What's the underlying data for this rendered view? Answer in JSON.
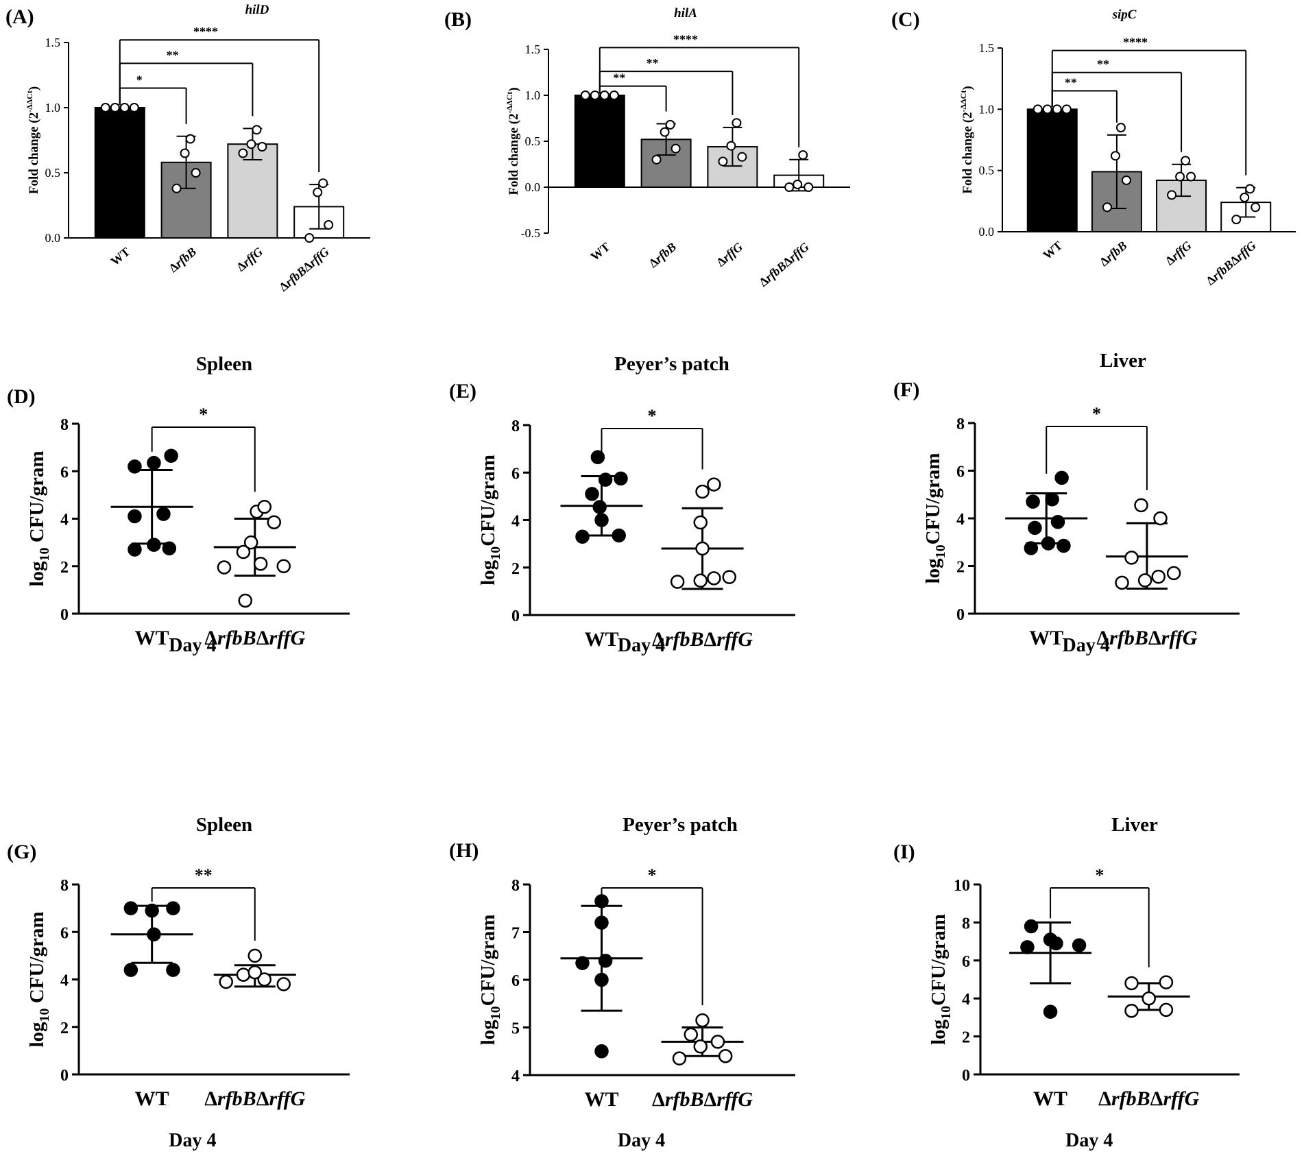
{
  "figure": {
    "bar_panels": [
      {
        "id": "A",
        "label": "(A)",
        "gene": "hilD",
        "ylabel": "Fold change (2",
        "ylabel_sup": "-ΔΔCt",
        "ylabel_end": ")",
        "ylim": [
          0,
          1.5
        ],
        "yticks": [
          0.0,
          0.5,
          1.0,
          1.5
        ],
        "yticklabels": [
          "0.0",
          "0.5",
          "1.0",
          "1.5"
        ],
        "categories": [
          "WT",
          "ΔrfbB",
          "ΔrffG",
          "ΔrfbBΔrffG"
        ],
        "means": [
          1.0,
          0.58,
          0.72,
          0.24
        ],
        "sd": [
          0.0,
          0.2,
          0.12,
          0.17
        ],
        "points": [
          [
            1.0,
            1.0,
            1.0,
            1.0
          ],
          [
            0.38,
            0.5,
            0.65,
            0.76
          ],
          [
            0.65,
            0.7,
            0.72,
            0.83
          ],
          [
            0.0,
            0.1,
            0.35,
            0.42
          ]
        ],
        "colors": [
          "#000000",
          "#808080",
          "#d3d3d3",
          "#ffffff"
        ],
        "comparisons": [
          {
            "to": 1,
            "label": "*",
            "level": 1.15
          },
          {
            "to": 2,
            "label": "**",
            "level": 1.34
          },
          {
            "to": 3,
            "label": "****",
            "level": 1.52
          }
        ]
      },
      {
        "id": "B",
        "label": "(B)",
        "gene": "hilA",
        "ylabel": "Fold change (2",
        "ylabel_sup": "-ΔΔCt",
        "ylabel_end": ")",
        "ylim": [
          -0.5,
          1.5
        ],
        "yticks": [
          -0.5,
          0.0,
          0.5,
          1.0,
          1.5
        ],
        "yticklabels": [
          "-0.5",
          "0.0",
          "0.5",
          "1.0",
          "1.5"
        ],
        "categories": [
          "WT",
          "ΔrfbB",
          "ΔrffG",
          "ΔrfbBΔrffG"
        ],
        "means": [
          1.0,
          0.52,
          0.44,
          0.13
        ],
        "sd": [
          0.0,
          0.17,
          0.21,
          0.17
        ],
        "points": [
          [
            1.0,
            1.0,
            1.0,
            1.0
          ],
          [
            0.3,
            0.42,
            0.6,
            0.68
          ],
          [
            0.28,
            0.33,
            0.45,
            0.7
          ],
          [
            0.0,
            0.0,
            0.03,
            0.35
          ]
        ],
        "colors": [
          "#000000",
          "#808080",
          "#d3d3d3",
          "#ffffff"
        ],
        "comparisons": [
          {
            "to": 1,
            "label": "**",
            "level": 1.1
          },
          {
            "to": 2,
            "label": "**",
            "level": 1.26
          },
          {
            "to": 3,
            "label": "****",
            "level": 1.52
          }
        ]
      },
      {
        "id": "C",
        "label": "(C)",
        "gene": "sipC",
        "ylabel": "Fold change (2",
        "ylabel_sup": "-ΔΔCt",
        "ylabel_end": ")",
        "ylim": [
          0,
          1.5
        ],
        "yticks": [
          0.0,
          0.5,
          1.0,
          1.5
        ],
        "yticklabels": [
          "0.0",
          "0.5",
          "1.0",
          "1.5"
        ],
        "categories": [
          "WT",
          "ΔrfbB",
          "ΔrffG",
          "ΔrfbBΔrffG"
        ],
        "means": [
          1.0,
          0.49,
          0.42,
          0.24
        ],
        "sd": [
          0.0,
          0.3,
          0.13,
          0.12
        ],
        "points": [
          [
            1.0,
            1.0,
            1.0,
            1.0
          ],
          [
            0.2,
            0.42,
            0.62,
            0.85
          ],
          [
            0.3,
            0.45,
            0.45,
            0.58
          ],
          [
            0.1,
            0.2,
            0.28,
            0.35
          ]
        ],
        "colors": [
          "#000000",
          "#808080",
          "#d3d3d3",
          "#ffffff"
        ],
        "comparisons": [
          {
            "to": 1,
            "label": "**",
            "level": 1.15
          },
          {
            "to": 2,
            "label": "**",
            "level": 1.3
          },
          {
            "to": 3,
            "label": "****",
            "level": 1.48
          }
        ]
      }
    ],
    "scatter_panels": [
      {
        "id": "D",
        "label": "(D)",
        "title": "Spleen",
        "ylabel_pre": "log",
        "ylabel_sub": "10",
        "ylabel_post": " CFU/gram",
        "ylim": [
          0,
          8
        ],
        "yticks": [
          0,
          2,
          4,
          6,
          8
        ],
        "yticklabels": [
          "0",
          "2",
          "4",
          "6",
          "8"
        ],
        "xlabel": "Day 4",
        "star": "*",
        "groups": [
          {
            "name": "WT",
            "filled": true,
            "mean": 4.5,
            "sd_low": 2.95,
            "sd_high": 6.05,
            "points": [
              2.7,
              2.75,
              2.9,
              4.1,
              4.2,
              6.2,
              6.35,
              6.65
            ],
            "offsets": [
              -0.9,
              0.9,
              0.1,
              -0.9,
              0.6,
              -0.9,
              0.1,
              1.0
            ]
          },
          {
            "name": "ΔrfbBΔrffG",
            "filled": false,
            "mean": 2.8,
            "sd_low": 1.6,
            "sd_high": 4.0,
            "points": [
              0.55,
              1.95,
              2.0,
              2.1,
              2.6,
              3.0,
              3.85,
              4.3,
              4.5
            ],
            "offsets": [
              -0.5,
              -1.6,
              1.5,
              0.3,
              -0.6,
              -0.2,
              1.0,
              0.1,
              0.5
            ]
          }
        ]
      },
      {
        "id": "E",
        "label": "(E)",
        "title": "Peyer’s patch",
        "ylabel_pre": "log",
        "ylabel_sub": "10",
        "ylabel_post": "CFU/gram",
        "ylim": [
          0,
          8
        ],
        "yticks": [
          0,
          2,
          4,
          6,
          8
        ],
        "yticklabels": [
          "0",
          "2",
          "4",
          "6",
          "8"
        ],
        "xlabel": "Day 4",
        "star": "*",
        "groups": [
          {
            "name": "WT",
            "filled": true,
            "mean": 4.6,
            "sd_low": 3.35,
            "sd_high": 5.85,
            "points": [
              3.3,
              3.35,
              4.0,
              4.55,
              5.1,
              5.7,
              5.75,
              6.65
            ],
            "offsets": [
              -1.0,
              0.9,
              0.0,
              -0.1,
              -0.5,
              0.2,
              1.0,
              -0.2
            ]
          },
          {
            "name": "ΔrfbBΔrffG",
            "filled": false,
            "mean": 2.8,
            "sd_low": 1.1,
            "sd_high": 4.5,
            "points": [
              1.4,
              1.45,
              1.55,
              1.6,
              2.8,
              3.9,
              5.2,
              5.5
            ],
            "offsets": [
              -1.3,
              -0.1,
              0.6,
              1.4,
              0.0,
              -0.1,
              0.0,
              0.6
            ]
          }
        ]
      },
      {
        "id": "F",
        "label": "(F)",
        "title": "Liver",
        "ylabel_pre": "log",
        "ylabel_sub": "10",
        "ylabel_post": "CFU/gram",
        "ylim": [
          0,
          8
        ],
        "yticks": [
          0,
          2,
          4,
          6,
          8
        ],
        "yticklabels": [
          "0",
          "2",
          "4",
          "6",
          "8"
        ],
        "xlabel": "Day 4",
        "star": "*",
        "groups": [
          {
            "name": "WT",
            "filled": true,
            "mean": 4.0,
            "sd_low": 2.95,
            "sd_high": 5.05,
            "points": [
              2.75,
              2.85,
              2.95,
              3.6,
              3.85,
              4.7,
              4.8,
              5.7
            ],
            "offsets": [
              -0.8,
              0.9,
              0.1,
              -0.6,
              0.6,
              -0.7,
              0.3,
              0.8
            ]
          },
          {
            "name": "ΔrfbBΔrffG",
            "filled": false,
            "mean": 2.4,
            "sd_low": 1.05,
            "sd_high": 3.8,
            "points": [
              1.3,
              1.4,
              1.55,
              1.7,
              2.35,
              4.0,
              4.55
            ],
            "offsets": [
              -1.3,
              -0.1,
              0.6,
              1.4,
              -0.8,
              0.7,
              -0.3
            ]
          }
        ]
      },
      {
        "id": "G",
        "label": "(G)",
        "title": "Spleen",
        "ylabel_pre": "log",
        "ylabel_sub": "10",
        "ylabel_post": " CFU/gram",
        "ylim": [
          0,
          8
        ],
        "yticks": [
          0,
          2,
          4,
          6,
          8
        ],
        "yticklabels": [
          "0",
          "2",
          "4",
          "6",
          "8"
        ],
        "xlabel": "Day 4",
        "star": "**",
        "groups": [
          {
            "name": "WT",
            "filled": true,
            "mean": 5.9,
            "sd_low": 4.7,
            "sd_high": 7.1,
            "points": [
              4.4,
              4.4,
              5.9,
              6.9,
              7.0,
              7.0
            ],
            "offsets": [
              -1.1,
              1.1,
              0.1,
              0.0,
              -1.1,
              1.1
            ]
          },
          {
            "name": "ΔrfbBΔrffG",
            "filled": false,
            "mean": 4.2,
            "sd_low": 3.7,
            "sd_high": 4.6,
            "points": [
              3.8,
              3.9,
              4.0,
              4.2,
              4.3,
              5.0
            ],
            "offsets": [
              1.5,
              -1.5,
              0.5,
              -0.6,
              0.0,
              0.0
            ]
          }
        ]
      },
      {
        "id": "H",
        "label": "(H)",
        "title": "Peyer’s patch",
        "ylabel_pre": "log",
        "ylabel_sub": "10",
        "ylabel_post": "CFU/gram",
        "ylim": [
          4,
          8
        ],
        "yticks": [
          4,
          5,
          6,
          7,
          8
        ],
        "yticklabels": [
          "4",
          "5",
          "6",
          "7",
          "8"
        ],
        "xlabel": "Day 4",
        "star": "*",
        "groups": [
          {
            "name": "WT",
            "filled": true,
            "mean": 6.45,
            "sd_low": 5.35,
            "sd_high": 7.55,
            "points": [
              4.5,
              6.0,
              6.35,
              6.4,
              7.2,
              7.65
            ],
            "offsets": [
              0.0,
              0.0,
              -1.0,
              0.2,
              0.0,
              0.0
            ]
          },
          {
            "name": "ΔrfbBΔrffG",
            "filled": false,
            "mean": 4.7,
            "sd_low": 4.4,
            "sd_high": 5.0,
            "points": [
              4.35,
              4.4,
              4.6,
              4.7,
              4.85,
              5.15
            ],
            "offsets": [
              -1.2,
              1.2,
              -0.1,
              0.8,
              -0.6,
              0.0
            ]
          }
        ]
      },
      {
        "id": "I",
        "label": "(I)",
        "title": "Liver",
        "ylabel_pre": "log",
        "ylabel_sub": "10",
        "ylabel_post": "CFU/gram",
        "ylim": [
          0,
          10
        ],
        "yticks": [
          0,
          2,
          4,
          6,
          8,
          10
        ],
        "yticklabels": [
          "0",
          "2",
          "4",
          "6",
          "8",
          "10"
        ],
        "xlabel": "Day 4",
        "star": "*",
        "groups": [
          {
            "name": "WT",
            "filled": true,
            "mean": 6.4,
            "sd_low": 4.8,
            "sd_high": 8.0,
            "points": [
              3.3,
              6.7,
              6.8,
              6.9,
              7.1,
              7.8
            ],
            "offsets": [
              0.0,
              -1.2,
              1.5,
              0.3,
              0.0,
              -1.0
            ]
          },
          {
            "name": "ΔrfbBΔrffG",
            "filled": false,
            "mean": 4.1,
            "sd_low": 3.4,
            "sd_high": 4.8,
            "points": [
              3.35,
              3.4,
              4.0,
              4.8,
              4.85
            ],
            "offsets": [
              -0.9,
              0.9,
              0.0,
              -0.9,
              0.9
            ]
          }
        ]
      }
    ]
  }
}
